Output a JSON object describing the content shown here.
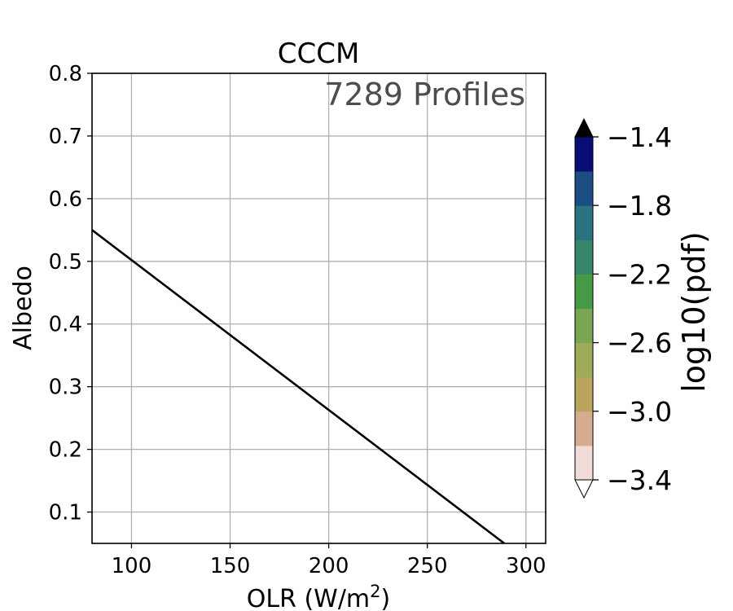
{
  "chart_data": {
    "type": "line",
    "title": "CCCM",
    "annotation": "7289 Profiles",
    "xlabel_main": "OLR (W/m",
    "xlabel_sup": "2",
    "xlabel_end": ")",
    "ylabel": "Albedo",
    "xlim": [
      80,
      310
    ],
    "ylim": [
      0.05,
      0.8
    ],
    "x_ticks": [
      100,
      150,
      200,
      250,
      300
    ],
    "y_ticks": [
      0.1,
      0.2,
      0.3,
      0.4,
      0.5,
      0.6,
      0.7,
      0.8
    ],
    "grid": true,
    "series": [
      {
        "x": [
          80,
          289
        ],
        "y": [
          0.55,
          0.05
        ],
        "color": "#000000"
      }
    ],
    "colorbar": {
      "label": "log10(pdf)",
      "min": -3.4,
      "max": -1.4,
      "ticks": [
        "−1.4",
        "−1.8",
        "−2.2",
        "−2.6",
        "−3.0",
        "−3.4"
      ],
      "extend_over_color": "#000000",
      "extend_under_color": "#ffffff",
      "colors": [
        "#f2dcd9",
        "#d6ac8e",
        "#bba45d",
        "#9fab59",
        "#79a651",
        "#469a45",
        "#368769",
        "#2a7381",
        "#1c4d82",
        "#0a0e74"
      ]
    }
  }
}
